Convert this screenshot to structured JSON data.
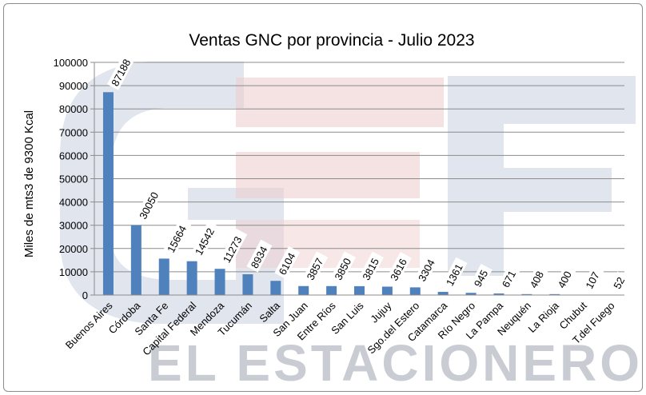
{
  "watermark": {
    "brand_text": "EL ESTACIONERO",
    "colors": {
      "blue": "#c7d0e0",
      "red": "#efcfcf",
      "text": "#c9ccd3"
    }
  },
  "chart_data": {
    "type": "bar",
    "title": "Ventas GNC por provincia - Julio 2023",
    "xlabel": "",
    "ylabel": "Miles de mts3 de 9300 Kcal",
    "ylim": [
      0,
      100000
    ],
    "yticks": [
      "0",
      "10000",
      "20000",
      "30000",
      "40000",
      "50000",
      "60000",
      "70000",
      "80000",
      "90000",
      "100000"
    ],
    "grid": true,
    "legend": "none",
    "bar_color": "#4f81bd",
    "categories": [
      "Buenos Aires",
      "Córdoba",
      "Santa Fe",
      "Capital Federal",
      "Mendoza",
      "Tucumán",
      "Salta",
      "San Juan",
      "Entre Ríos",
      "San Luis",
      "Jujuy",
      "Sgo.del Estero",
      "Catamarca",
      "Río Negro",
      "La Pampa",
      "Neuquén",
      "La Rioja",
      "Chubut",
      "T.del Fuego"
    ],
    "values": [
      87188,
      30050,
      15664,
      14542,
      11273,
      8934,
      6104,
      3857,
      3850,
      3815,
      3616,
      3304,
      1361,
      945,
      671,
      408,
      400,
      107,
      52
    ],
    "labels": [
      "87188",
      "30050",
      "15664",
      "14542",
      "11273",
      "8934",
      "6104",
      "3857",
      "3850",
      "3815",
      "3616",
      "3304",
      "1361",
      "945",
      "671",
      "408",
      "400",
      "107",
      "52"
    ]
  }
}
